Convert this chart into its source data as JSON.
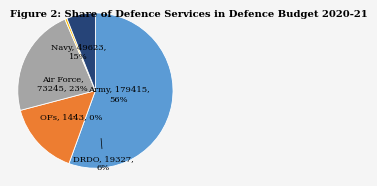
{
  "title": "Figure 2: Share of Defence Services in Defence Budget 2020-21",
  "labels": [
    "Army",
    "Navy",
    "Air Force",
    "OFs",
    "DRDO"
  ],
  "values": [
    179415,
    49623,
    73245,
    1443,
    19327
  ],
  "percentages": [
    56,
    15,
    23,
    0,
    6
  ],
  "colors": [
    "#5b9bd5",
    "#ed7d31",
    "#a5a5a5",
    "#ffc000",
    "#264478"
  ],
  "startangle": 90,
  "counterclock": false,
  "background_color": "#f5f5f5",
  "title_fontsize": 7.2,
  "label_fontsize": 6.0,
  "wedge_edge_color": "white",
  "wedge_linewidth": 0.6
}
